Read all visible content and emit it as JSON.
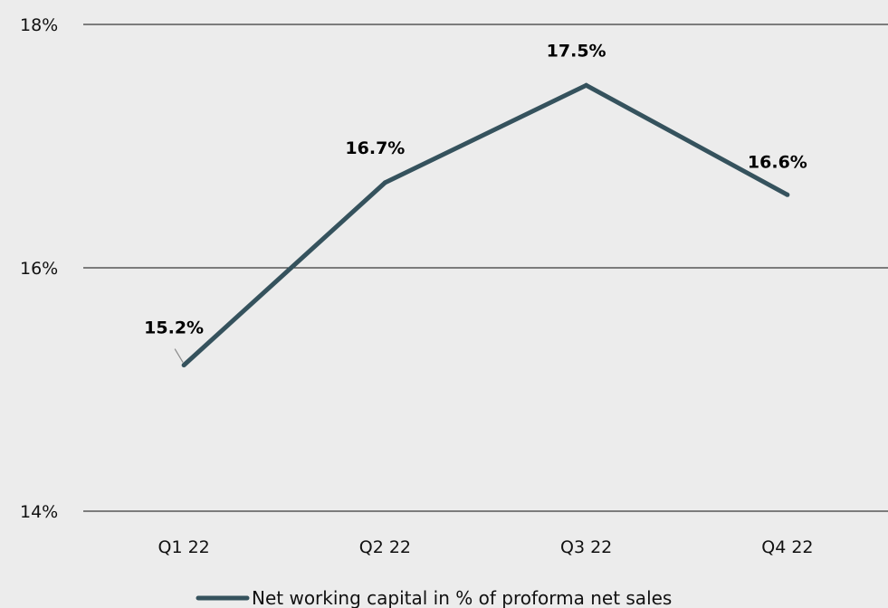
{
  "chart_data": {
    "type": "line",
    "categories": [
      "Q1 22",
      "Q2 22",
      "Q3 22",
      "Q4 22"
    ],
    "series": [
      {
        "name": "Net working capital in % of proforma net sales",
        "values": [
          15.2,
          16.7,
          17.5,
          16.6
        ],
        "labels": [
          "15.2%",
          "16.7%",
          "17.5%",
          "16.6%"
        ],
        "color": "#35525d"
      }
    ],
    "y_ticks": [
      {
        "value": 14,
        "label": "14%"
      },
      {
        "value": 16,
        "label": "16%"
      },
      {
        "value": 18,
        "label": "18%"
      }
    ],
    "ylim": [
      14,
      18
    ],
    "grid": true,
    "legend": "bottom-center",
    "title": "",
    "xlabel": "",
    "ylabel": ""
  },
  "colors": {
    "background": "#ececec",
    "gridline": "#3a3a3a",
    "series": "#35525d",
    "leader_line": "#8a8a8a"
  }
}
